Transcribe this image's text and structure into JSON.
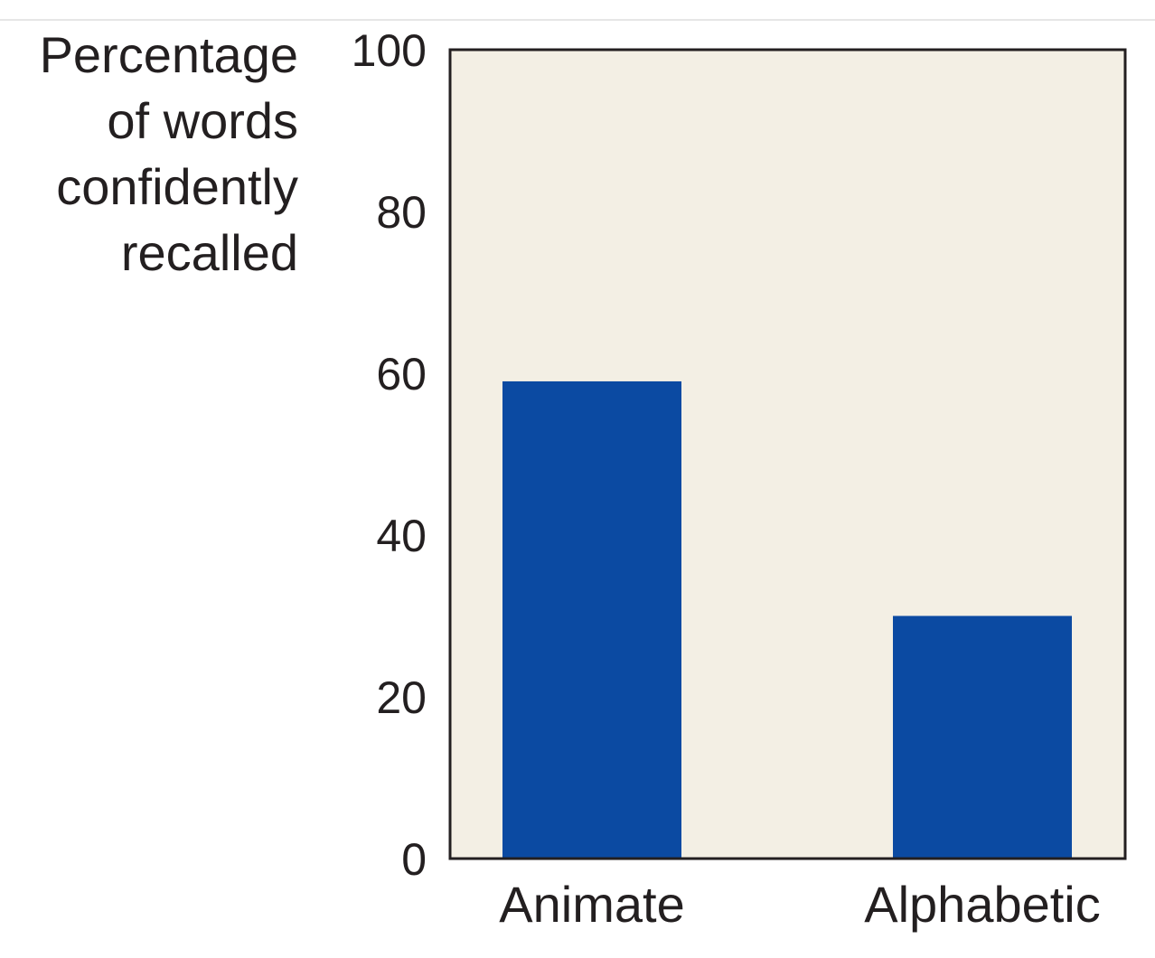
{
  "chart_data": {
    "type": "bar",
    "title": "",
    "xlabel": "",
    "ylabel_lines": [
      "Percentage",
      "of words",
      "confidently",
      "recalled"
    ],
    "categories": [
      "Animate",
      "Alphabetic"
    ],
    "values": [
      59,
      30
    ],
    "ylim": [
      0,
      100
    ],
    "yticks": [
      0,
      20,
      40,
      60,
      80,
      100
    ],
    "grid": false,
    "legend": "none",
    "colors": {
      "bar": "#0b4aa2",
      "plot_background": "#f3efe4",
      "axis": "#231f20"
    }
  }
}
